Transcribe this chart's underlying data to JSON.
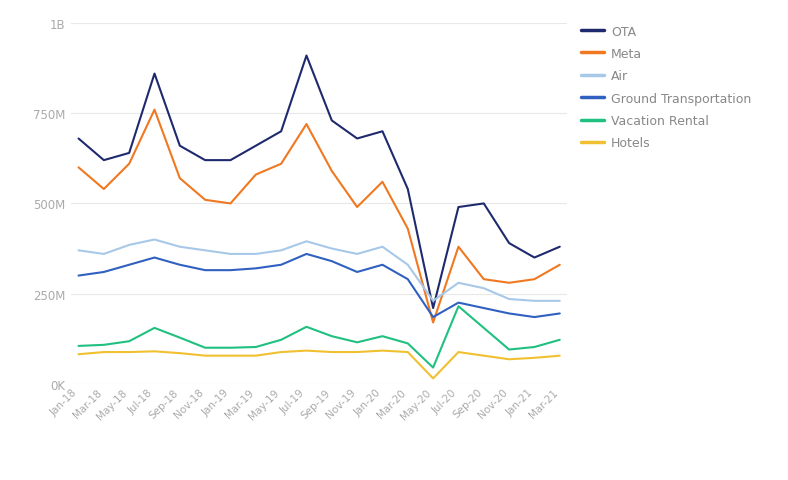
{
  "x_labels": [
    "Jan-18",
    "Mar-18",
    "May-18",
    "Jul-18",
    "Sep-18",
    "Nov-18",
    "Jan-19",
    "Mar-19",
    "May-19",
    "Jul-19",
    "Sep-19",
    "Nov-19",
    "Jan-20",
    "Mar-20",
    "May-20",
    "Jul-20",
    "Sep-20",
    "Nov-20",
    "Jan-21",
    "Mar-21"
  ],
  "series": {
    "OTA": {
      "color": "#1f2a6e",
      "values": [
        680,
        620,
        640,
        860,
        660,
        620,
        620,
        660,
        700,
        910,
        730,
        680,
        700,
        540,
        210,
        490,
        500,
        390,
        350,
        380
      ]
    },
    "Meta": {
      "color": "#f07820",
      "values": [
        600,
        540,
        610,
        760,
        570,
        510,
        500,
        580,
        610,
        720,
        590,
        490,
        560,
        430,
        170,
        380,
        290,
        280,
        290,
        330
      ]
    },
    "Air": {
      "color": "#a8c8e8",
      "values": [
        370,
        360,
        385,
        400,
        380,
        370,
        360,
        360,
        370,
        395,
        375,
        360,
        380,
        330,
        230,
        280,
        265,
        235,
        230,
        230
      ]
    },
    "Ground Transportation": {
      "color": "#3060c0",
      "values": [
        300,
        310,
        330,
        350,
        330,
        315,
        315,
        320,
        330,
        360,
        340,
        310,
        330,
        290,
        185,
        225,
        210,
        195,
        185,
        195
      ]
    },
    "Vacation Rental": {
      "color": "#20c080",
      "values": [
        105,
        108,
        118,
        155,
        128,
        100,
        100,
        102,
        122,
        158,
        132,
        115,
        132,
        112,
        45,
        215,
        155,
        95,
        102,
        122
      ]
    },
    "Hotels": {
      "color": "#f0c030",
      "values": [
        82,
        88,
        88,
        90,
        85,
        78,
        78,
        78,
        88,
        92,
        88,
        88,
        92,
        88,
        15,
        88,
        78,
        68,
        72,
        78
      ]
    }
  },
  "ylim": [
    0,
    1000
  ],
  "yticks": [
    0,
    250,
    500,
    750,
    1000
  ],
  "ytick_labels": [
    "0K",
    "250M",
    "500M",
    "750M",
    "1B"
  ],
  "background_color": "#ffffff",
  "grid_color": "#e8e8e8",
  "legend_text_color": "#888888",
  "tick_color": "#aaaaaa"
}
